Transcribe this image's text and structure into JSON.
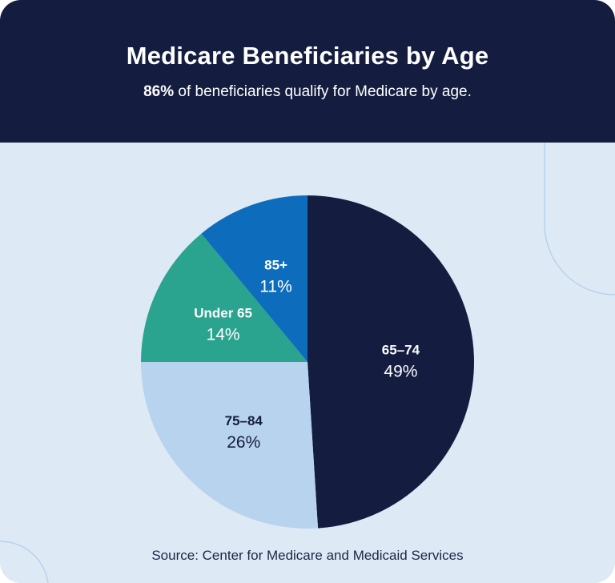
{
  "header": {
    "title": "Medicare Beneficiaries by Age",
    "subtitle_bold": "86%",
    "subtitle_rest": " of beneficiaries qualify for Medicare by age."
  },
  "chart_data": {
    "type": "pie",
    "title": "Medicare Beneficiaries by Age",
    "categories": [
      "65–74",
      "75–84",
      "Under 65",
      "85+"
    ],
    "values": [
      49,
      26,
      14,
      11
    ],
    "value_labels": [
      "49%",
      "26%",
      "14%",
      "11%"
    ],
    "colors": [
      "#141d40",
      "#b8d3ee",
      "#2aa38f",
      "#0e6cbd"
    ],
    "label_colors": [
      "#ffffff",
      "#141d40",
      "#ffffff",
      "#ffffff"
    ],
    "start_angle": "12 o'clock",
    "direction": "clockwise",
    "legend": "none (labels inside slices)"
  },
  "footer": {
    "source": "Source: Center for Medicare and Medicaid Services"
  },
  "colors": {
    "header_bg": "#141d40",
    "card_bg": "#ddeaf6",
    "decor_line": "#b7d2ea"
  }
}
